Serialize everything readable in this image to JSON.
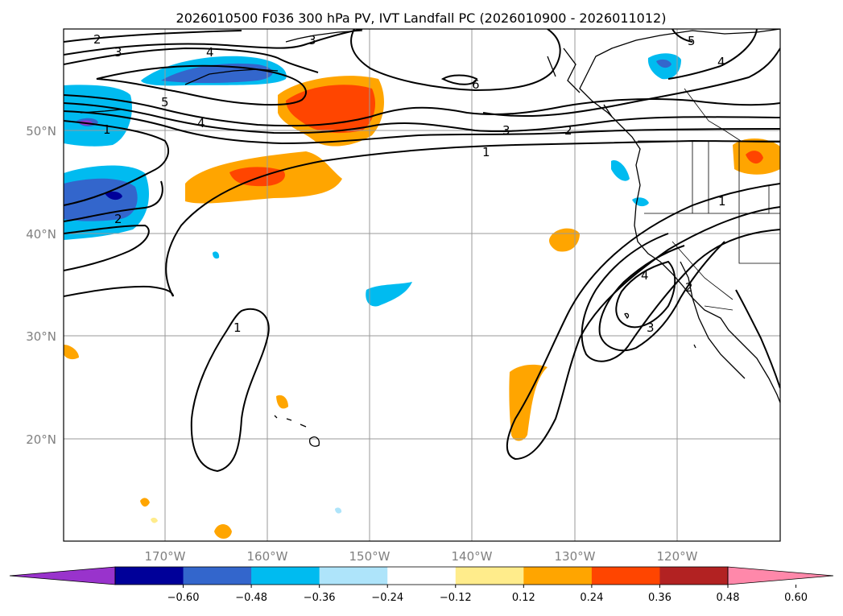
{
  "title": "2026010500 F036 300 hPa PV, IVT Landfall PC (2026010900 - 2026011012)",
  "map": {
    "lon_labels": [
      "170°W",
      "160°W",
      "150°W",
      "140°W",
      "130°W",
      "120°W"
    ],
    "lat_labels": [
      "50°N",
      "40°N",
      "30°N",
      "20°N"
    ],
    "contour_labels": [
      {
        "text": "2",
        "id": "c2a"
      },
      {
        "text": "3",
        "id": "c3a"
      },
      {
        "text": "4",
        "id": "c4a"
      },
      {
        "text": "3",
        "id": "c3b"
      },
      {
        "text": "5",
        "id": "c5a"
      },
      {
        "text": "6",
        "id": "c6a"
      },
      {
        "text": "4",
        "id": "c4b"
      },
      {
        "text": "1",
        "id": "c1a"
      },
      {
        "text": "3",
        "id": "c3c"
      },
      {
        "text": "2",
        "id": "c2b"
      },
      {
        "text": "1",
        "id": "c1b"
      },
      {
        "text": "5",
        "id": "c5b"
      },
      {
        "text": "4",
        "id": "c4c"
      },
      {
        "text": "2",
        "id": "c2c"
      },
      {
        "text": "1",
        "id": "c1c"
      },
      {
        "text": "4",
        "id": "c4d"
      },
      {
        "text": "2",
        "id": "c2d"
      },
      {
        "text": "3",
        "id": "c3d"
      },
      {
        "text": "1",
        "id": "c1d"
      }
    ],
    "shading_colors": {
      "neg_060": "#9933cc",
      "neg_048": "#000099",
      "neg_036": "#3366cc",
      "neg_024": "#00bbf0",
      "neg_012": "#aee4fa",
      "pos_012": "#ffec8b",
      "pos_024": "#ffa500",
      "pos_036": "#ff4500",
      "pos_048": "#b22222",
      "pos_060": "#ff88aa"
    }
  },
  "colorbar": {
    "colors": [
      "#9933cc",
      "#000099",
      "#3366cc",
      "#00bbf0",
      "#aee4fa",
      "#ffffff",
      "#ffec8b",
      "#ffa500",
      "#ff4500",
      "#b22222",
      "#ff88aa"
    ],
    "ticks": [
      "−0.60",
      "−0.48",
      "−0.36",
      "−0.24",
      "−0.12",
      "0.12",
      "0.24",
      "0.36",
      "0.48",
      "0.60"
    ]
  }
}
